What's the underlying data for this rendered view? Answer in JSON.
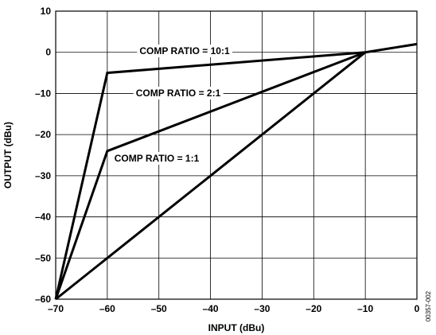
{
  "chart_data": {
    "type": "line",
    "xlabel": "INPUT (dBu)",
    "ylabel": "OUTPUT (dBu)",
    "xlim": [
      -70,
      0
    ],
    "ylim": [
      -60,
      10
    ],
    "xticks": [
      -70,
      -60,
      -50,
      -40,
      -30,
      -20,
      -10,
      0
    ],
    "yticks": [
      -60,
      -50,
      -40,
      -30,
      -20,
      -10,
      0,
      10
    ],
    "xtick_labels": [
      "–70",
      "–60",
      "–50",
      "–40",
      "–30",
      "–20",
      "–10",
      "0"
    ],
    "ytick_labels": [
      "–60",
      "–50",
      "–40",
      "–30",
      "–20",
      "–10",
      "0",
      "10"
    ],
    "grid": true,
    "series": [
      {
        "name": "COMP RATIO = 10:1",
        "x": [
          -70,
          -60,
          -10,
          0
        ],
        "y": [
          -60,
          -5,
          0,
          2
        ]
      },
      {
        "name": "COMP RATIO = 2:1",
        "x": [
          -70,
          -60,
          -10
        ],
        "y": [
          -60,
          -24,
          0
        ]
      },
      {
        "name": "COMP RATIO = 1:1",
        "x": [
          -70,
          -10
        ],
        "y": [
          -60,
          0
        ]
      }
    ],
    "figure_id": "00357-002"
  }
}
